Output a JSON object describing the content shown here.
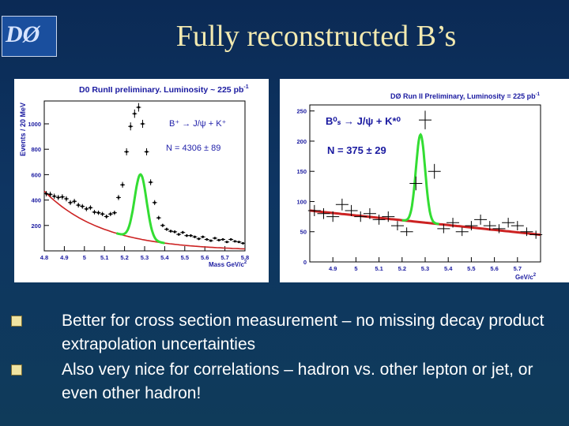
{
  "slide": {
    "logo_text": "DØ",
    "title": "Fully reconstructed B’s",
    "bullets": [
      "Better for cross section measurement – no missing decay product extrapolation uncertainties",
      "Also very nice for correlations – hadron vs. other lepton or jet, or even other hadron!"
    ]
  },
  "colors": {
    "background": "#0e3562",
    "title": "#f3eab0",
    "fit_background": "#cc2222",
    "fit_signal": "#33dd33",
    "bullet_marker": "#f0e4a2"
  },
  "chart_data": [
    {
      "type": "scatter",
      "title": "D0 RunII preliminary. Luminosity ~ 225 pb",
      "title_superscript": "-1",
      "xlabel": "Mass GeV/c",
      "xlabel_superscript": "2",
      "ylabel": "Events / 20 MeV",
      "xlim": [
        4.8,
        5.8
      ],
      "ylim": [
        0,
        1180
      ],
      "x_ticks": [
        "4.8",
        "4.9",
        "5",
        "5.1",
        "5.2",
        "5.3",
        "5.4",
        "5.5",
        "5.6",
        "5.7",
        "5.8"
      ],
      "y_ticks": [
        "200",
        "400",
        "600",
        "800",
        "1000"
      ],
      "decay_label": "B⁺ → J/ψ + K⁺",
      "yield_label": "N = 4306 ± 89",
      "fit": {
        "mean": 5.28,
        "sigma": 0.03,
        "amplitude": 510
      },
      "background": {
        "intercept": 470,
        "decay": 3.4
      },
      "series": [
        {
          "x": [
            4.81,
            4.83,
            4.85,
            4.87,
            4.89,
            4.91,
            4.93,
            4.95,
            4.97,
            4.99,
            5.01,
            5.03,
            5.05,
            5.07,
            5.09,
            5.11,
            5.13,
            5.15,
            5.17,
            5.19,
            5.21,
            5.23,
            5.25,
            5.27,
            5.29,
            5.31,
            5.33,
            5.35,
            5.37,
            5.39,
            5.41,
            5.43,
            5.45,
            5.47,
            5.49,
            5.51,
            5.53,
            5.55,
            5.57,
            5.59,
            5.61,
            5.63,
            5.65,
            5.67,
            5.69,
            5.71,
            5.73,
            5.75,
            5.77,
            5.79
          ],
          "y": [
            450,
            445,
            430,
            420,
            425,
            410,
            380,
            390,
            360,
            350,
            330,
            340,
            305,
            300,
            290,
            270,
            290,
            300,
            420,
            520,
            780,
            980,
            1080,
            1130,
            1000,
            780,
            540,
            380,
            260,
            200,
            170,
            155,
            150,
            130,
            145,
            120,
            120,
            110,
            95,
            110,
            90,
            80,
            100,
            85,
            90,
            70,
            90,
            75,
            70,
            60
          ]
        }
      ]
    },
    {
      "type": "scatter",
      "title": "DØ Run II Preliminary, Luminosity = 225 pb",
      "title_superscript": "-1",
      "xlabel": "GeV/c",
      "xlabel_superscript": "2",
      "ylabel": "",
      "xlim": [
        4.8,
        5.8
      ],
      "ylim": [
        0,
        260
      ],
      "x_ticks": [
        "4.9",
        "5",
        "5.1",
        "5.2",
        "5.3",
        "5.4",
        "5.5",
        "5.6",
        "5.7"
      ],
      "y_ticks": [
        "0",
        "50",
        "100",
        "150",
        "200",
        "250"
      ],
      "decay_label": "B⁰ₛ → J/ψ + K*⁰",
      "yield_label": "N = 375 ± 29",
      "fit": {
        "mean": 5.28,
        "sigma": 0.02,
        "amplitude": 145
      },
      "background": {
        "start": 85,
        "end": 45
      },
      "series": [
        {
          "x": [
            4.82,
            4.86,
            4.9,
            4.94,
            4.98,
            5.02,
            5.06,
            5.1,
            5.14,
            5.18,
            5.22,
            5.26,
            5.3,
            5.34,
            5.38,
            5.42,
            5.46,
            5.5,
            5.54,
            5.58,
            5.62,
            5.66,
            5.7,
            5.74,
            5.78
          ],
          "y": [
            85,
            80,
            75,
            95,
            85,
            75,
            80,
            70,
            75,
            60,
            50,
            130,
            235,
            150,
            55,
            65,
            50,
            60,
            70,
            60,
            55,
            65,
            60,
            50,
            45
          ]
        }
      ]
    }
  ]
}
